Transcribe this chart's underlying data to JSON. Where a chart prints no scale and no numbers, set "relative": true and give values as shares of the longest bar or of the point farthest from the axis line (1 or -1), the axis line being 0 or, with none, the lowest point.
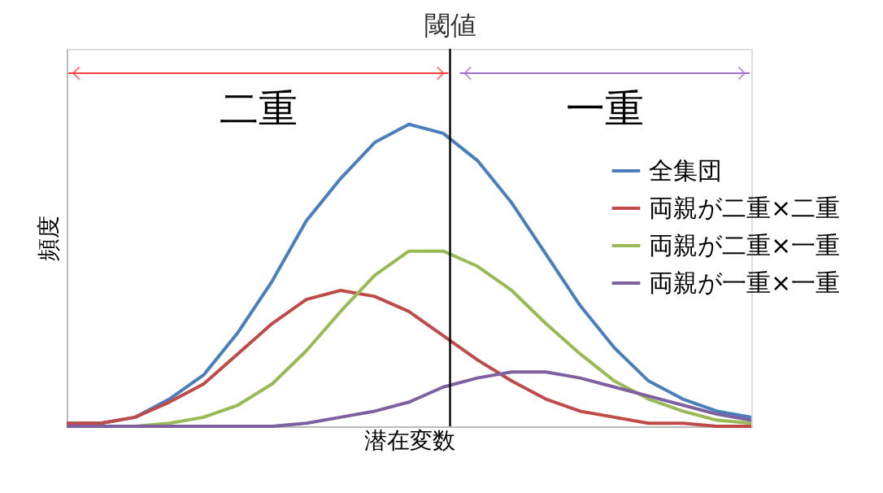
{
  "chart_data": {
    "type": "line",
    "relative": true,
    "xlabel": "潜在変数",
    "ylabel": "頻度",
    "categories": [
      null,
      null,
      null,
      null,
      null,
      null,
      null,
      null,
      null,
      null,
      null,
      null,
      null,
      null,
      null,
      null,
      null,
      null,
      null,
      null,
      null
    ],
    "legend": "right",
    "marker": "none",
    "line_style": "solid",
    "title": "閾値",
    "annotations": [
      "二重",
      "一重"
    ],
    "series": [
      {
        "name": "全集団",
        "color": "#4a7ebb",
        "values": [
          0.01,
          0.01,
          0.03,
          0.09,
          0.17,
          0.31,
          0.48,
          0.68,
          0.82,
          0.94,
          1.0,
          0.97,
          0.88,
          0.74,
          0.57,
          0.4,
          0.26,
          0.15,
          0.09,
          0.05,
          0.03
        ]
      },
      {
        "name": "両親が二重×二重",
        "color": "#be4b48",
        "values": [
          0.01,
          0.01,
          0.03,
          0.08,
          0.14,
          0.24,
          0.34,
          0.42,
          0.45,
          0.43,
          0.38,
          0.3,
          0.22,
          0.15,
          0.09,
          0.05,
          0.03,
          0.01,
          0.01,
          0.0,
          0.0
        ]
      },
      {
        "name": "両親が二重×一重",
        "color": "#98b954",
        "values": [
          0.0,
          0.0,
          0.0,
          0.01,
          0.03,
          0.07,
          0.14,
          0.25,
          0.38,
          0.5,
          0.58,
          0.58,
          0.53,
          0.45,
          0.34,
          0.24,
          0.15,
          0.09,
          0.05,
          0.02,
          0.01
        ]
      },
      {
        "name": "両親が一重×一重",
        "color": "#7d60a0",
        "values": [
          0.0,
          0.0,
          0.0,
          0.0,
          0.0,
          0.0,
          0.0,
          0.01,
          0.03,
          0.05,
          0.08,
          0.13,
          0.16,
          0.18,
          0.18,
          0.16,
          0.13,
          0.1,
          0.07,
          0.04,
          0.02
        ]
      }
    ]
  }
}
